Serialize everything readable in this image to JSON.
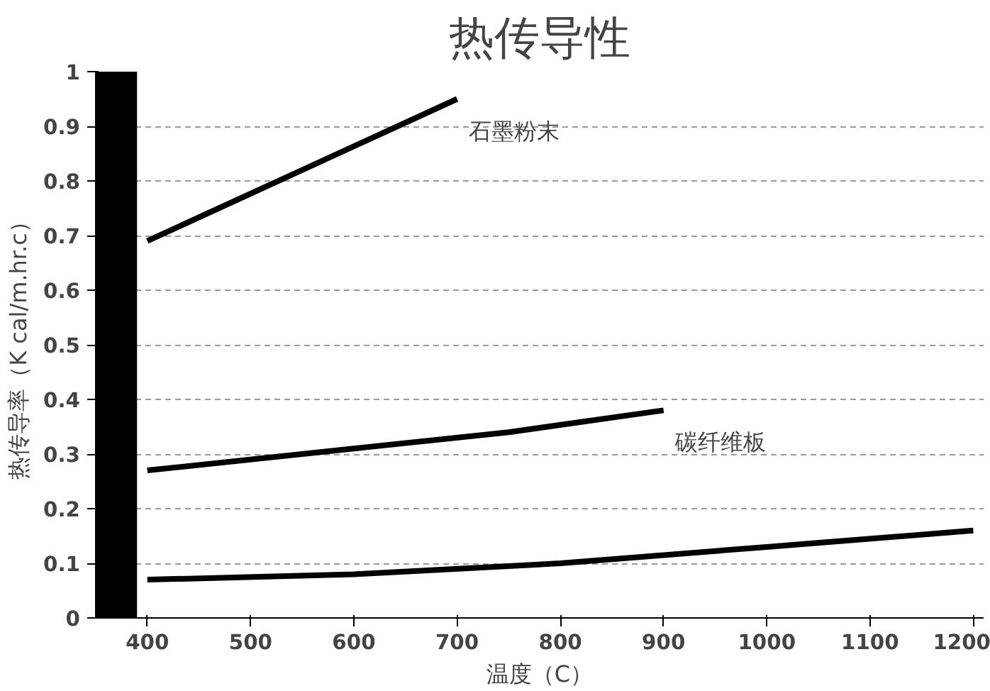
{
  "chart_data": {
    "type": "line",
    "title": "热传导性",
    "xlabel": "温度（C）",
    "ylabel": "热传导率（K cal/m.hr.c）",
    "xlim": [
      350,
      1210
    ],
    "xticks": [
      400,
      500,
      600,
      700,
      800,
      900,
      1000,
      1100,
      1200
    ],
    "ylim": [
      0,
      1
    ],
    "yticks": [
      0,
      0.1,
      0.2,
      0.3,
      0.4,
      0.5,
      0.6,
      0.7,
      0.8,
      0.9,
      1
    ],
    "grid": "y",
    "marker": "none",
    "line_style": "solid",
    "series": [
      {
        "name": "石墨粉末",
        "color": "#000000",
        "x": [
          400,
          550,
          700
        ],
        "values": [
          0.69,
          0.82,
          0.95
        ]
      },
      {
        "name": "碳纤维板",
        "color": "#000000",
        "x": [
          400,
          600,
          750,
          900
        ],
        "values": [
          0.27,
          0.31,
          0.34,
          0.38
        ]
      },
      {
        "color": "#000000",
        "x": [
          400,
          600,
          800,
          1000,
          1200
        ],
        "values": [
          0.07,
          0.08,
          0.1,
          0.13,
          0.16
        ]
      }
    ],
    "bands": [
      {
        "axis": "x",
        "from": 350,
        "to": 390,
        "color": "#000000"
      }
    ]
  }
}
